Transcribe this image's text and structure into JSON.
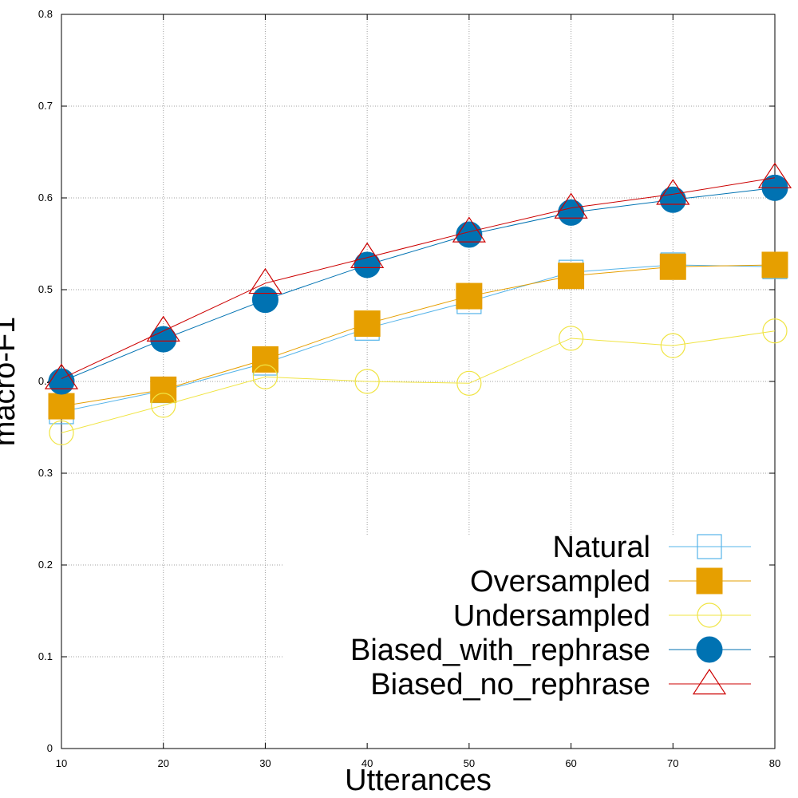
{
  "chart_data": {
    "type": "line",
    "xlabel": "Utterances",
    "ylabel": "macro-F1",
    "x": [
      10,
      20,
      30,
      40,
      50,
      60,
      70,
      80
    ],
    "xticks": [
      "10",
      "20",
      "30",
      "40",
      "50",
      "60",
      "70",
      "80"
    ],
    "yticks": [
      "0",
      "0.1",
      "0.2",
      "0.3",
      "0.4",
      "0.5",
      "0.6",
      "0.7",
      "0.8"
    ],
    "xlim": [
      10,
      80
    ],
    "ylim": [
      0,
      0.8
    ],
    "grid": true,
    "legend_position": "bottom-right",
    "series": [
      {
        "name": "Natural",
        "color": "#56b4e9",
        "marker": "square-open",
        "values": [
          0.367,
          0.39,
          0.42,
          0.458,
          0.487,
          0.519,
          0.527,
          0.525
        ]
      },
      {
        "name": "Oversampled",
        "color": "#e69f00",
        "marker": "square-filled",
        "values": [
          0.373,
          0.391,
          0.424,
          0.463,
          0.493,
          0.515,
          0.525,
          0.527
        ]
      },
      {
        "name": "Undersampled",
        "color": "#f0e442",
        "marker": "circle-open",
        "values": [
          0.344,
          0.374,
          0.405,
          0.4,
          0.398,
          0.447,
          0.439,
          0.455
        ]
      },
      {
        "name": "Biased_with_rephrase",
        "color": "#0072b2",
        "marker": "circle-filled",
        "values": [
          0.4,
          0.446,
          0.489,
          0.527,
          0.56,
          0.584,
          0.598,
          0.611
        ]
      },
      {
        "name": "Biased_no_rephrase",
        "color": "#cc0000",
        "marker": "triangle-open",
        "values": [
          0.403,
          0.455,
          0.507,
          0.535,
          0.563,
          0.589,
          0.604,
          0.622
        ]
      }
    ]
  }
}
